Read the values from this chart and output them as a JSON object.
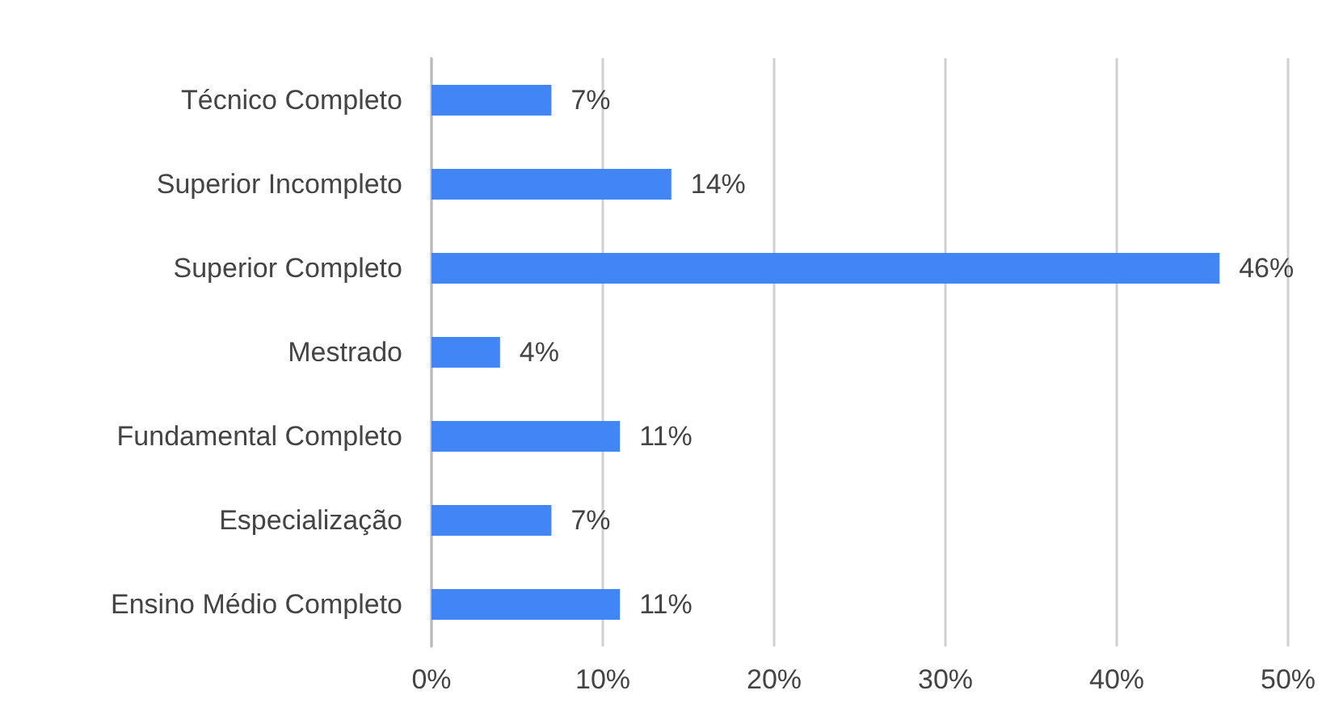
{
  "chart_data": {
    "type": "bar",
    "orientation": "horizontal",
    "categories": [
      "Técnico Completo",
      "Superior Incompleto",
      "Superior Completo",
      "Mestrado",
      "Fundamental Completo",
      "Especialização",
      "Ensino Médio Completo"
    ],
    "values": [
      7,
      14,
      46,
      4,
      11,
      7,
      11
    ],
    "color": "#4285f4",
    "xlim": [
      0,
      50
    ],
    "xticks": [
      {
        "value": 0,
        "label": "0%"
      },
      {
        "value": 10,
        "label": "10%"
      },
      {
        "value": 20,
        "label": "20%"
      },
      {
        "value": 30,
        "label": "30%"
      },
      {
        "value": 40,
        "label": "40%"
      },
      {
        "value": 50,
        "label": "50%"
      }
    ],
    "value_labels": [
      "7%",
      "14%",
      "46%",
      "4%",
      "11%",
      "7%",
      "11%"
    ],
    "grid": "x"
  }
}
